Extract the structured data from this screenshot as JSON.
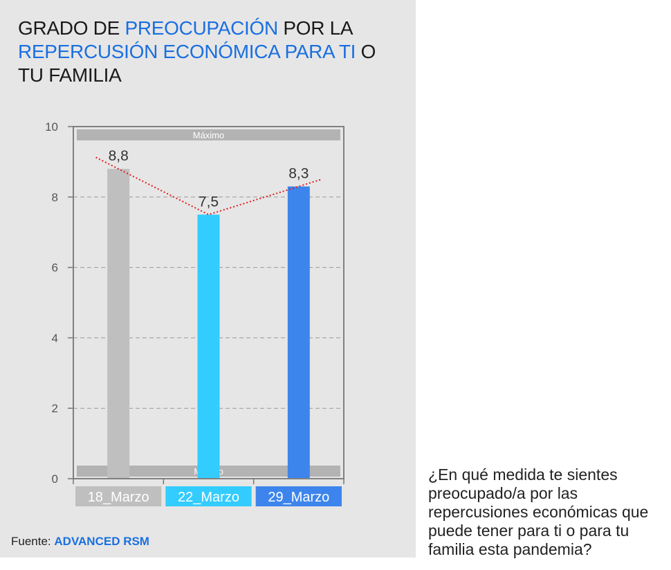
{
  "title": {
    "parts": [
      {
        "text": "GRADO DE ",
        "highlight": false
      },
      {
        "text": "PREOCUPACIÓN",
        "highlight": true
      },
      {
        "text": " POR LA ",
        "highlight": false
      },
      {
        "text": "REPERCUSIÓN ECONÓMICA PARA TI",
        "highlight": true
      },
      {
        "text": " O TU FAMILIA",
        "highlight": false
      }
    ]
  },
  "chart_data": {
    "type": "bar",
    "categories": [
      "18_Marzo",
      "22_Marzo",
      "29_Marzo"
    ],
    "values": [
      8.8,
      7.5,
      8.3
    ],
    "value_labels": [
      "8,8",
      "7,5",
      "8,3"
    ],
    "bar_colors": [
      "#bfbfbf",
      "#33ccff",
      "#3d85ec"
    ],
    "ylim": [
      0,
      10
    ],
    "yticks": [
      "0",
      "2",
      "4",
      "6",
      "8",
      "10"
    ],
    "grid": true,
    "bands": {
      "max_label": "Máximo",
      "min_label": "Mínimo",
      "color": "#b3b3b3"
    },
    "trendline": {
      "style": "dotted",
      "color": "#e31a1c"
    }
  },
  "source": {
    "label": "Fuente:",
    "name": "ADVANCED RSM"
  },
  "question": "¿En qué medida te sientes preocupado/a por las repercusiones económicas que puede tener para ti o para tu familia esta pandemia?"
}
